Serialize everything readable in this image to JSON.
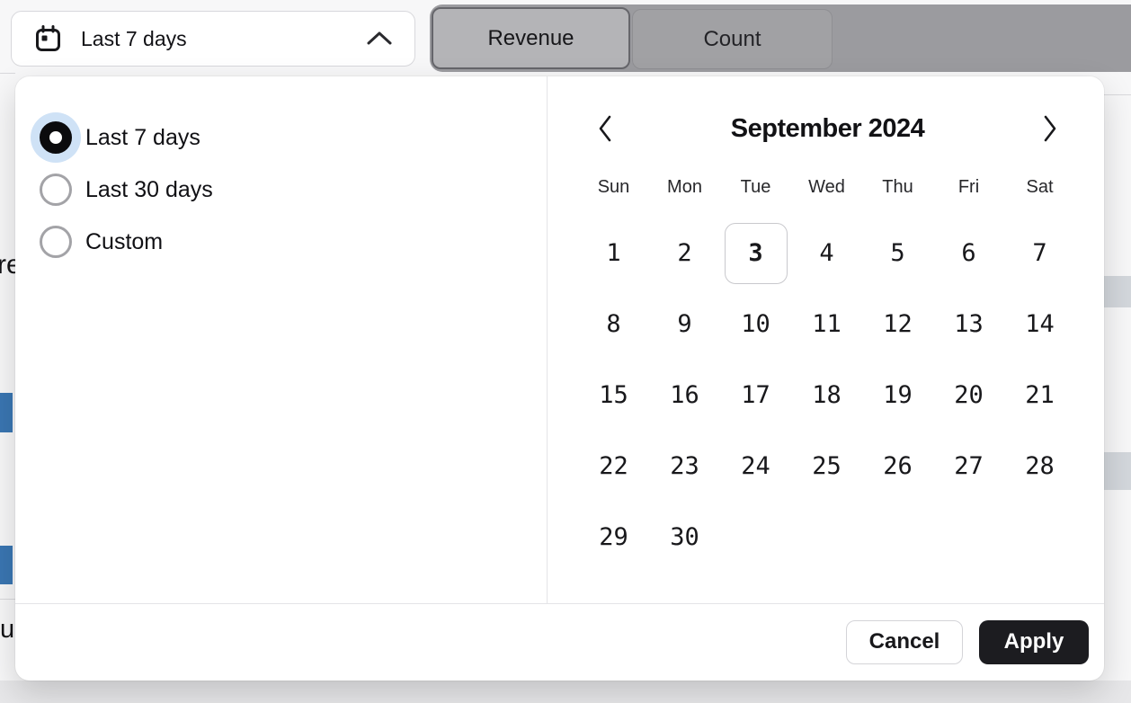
{
  "toolbar": {
    "dropdown": {
      "label": "Last 7 days",
      "icon": "calendar-icon",
      "state_icon": "chevron-up-icon"
    },
    "tabs": [
      {
        "label": "Revenue",
        "active": true
      },
      {
        "label": "Count",
        "active": false
      }
    ]
  },
  "popover": {
    "presets": [
      {
        "label": "Last 7 days",
        "selected": true
      },
      {
        "label": "Last 30 days",
        "selected": false
      },
      {
        "label": "Custom",
        "selected": false
      }
    ],
    "calendar": {
      "title": "September 2024",
      "prev_icon": "chevron-left-icon",
      "next_icon": "chevron-right-icon",
      "weekdays": [
        "Sun",
        "Mon",
        "Tue",
        "Wed",
        "Thu",
        "Fri",
        "Sat"
      ],
      "start_offset": 0,
      "days": [
        "1",
        "2",
        "3",
        "4",
        "5",
        "6",
        "7",
        "8",
        "9",
        "10",
        "11",
        "12",
        "13",
        "14",
        "15",
        "16",
        "17",
        "18",
        "19",
        "20",
        "21",
        "22",
        "23",
        "24",
        "25",
        "26",
        "27",
        "28",
        "29",
        "30"
      ],
      "today": "3"
    },
    "footer": {
      "cancel": "Cancel",
      "apply": "Apply"
    }
  },
  "background": {
    "fragment_top_left": "re",
    "fragment_bottom_left": "u"
  },
  "colors": {
    "chart_bar_blue": "#3a76b2",
    "radio_selected": "#0b0b0d",
    "radio_halo": "#cfe2f6",
    "today_border": "#c9c9cd",
    "apply_button": "#1c1c20",
    "tab_track": "#9b9b9f"
  }
}
